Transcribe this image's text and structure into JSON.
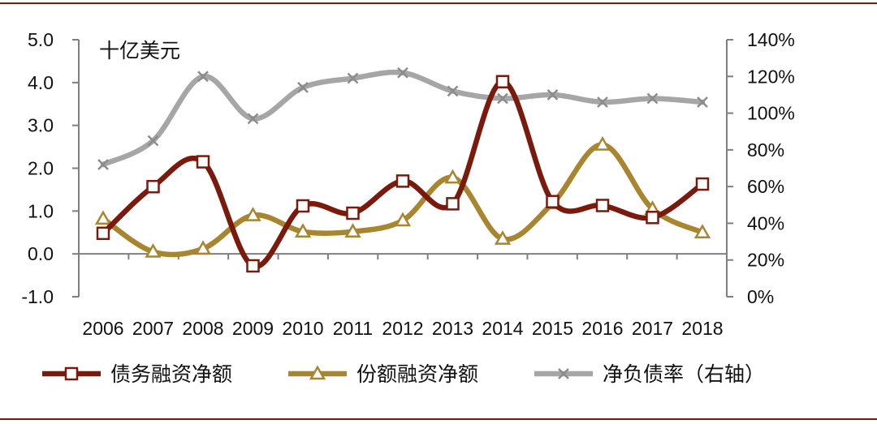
{
  "chart_data": {
    "type": "line",
    "unit_label": "十亿美元",
    "categories": [
      "2006",
      "2007",
      "2008",
      "2009",
      "2010",
      "2011",
      "2012",
      "2013",
      "2014",
      "2015",
      "2016",
      "2017",
      "2018"
    ],
    "left_axis": {
      "min": -1.0,
      "max": 5.0,
      "ticks": [
        "5.0",
        "4.0",
        "3.0",
        "2.0",
        "1.0",
        "0.0",
        "-1.0"
      ]
    },
    "right_axis": {
      "min": 0,
      "max": 140,
      "ticks": [
        "140%",
        "120%",
        "100%",
        "80%",
        "60%",
        "40%",
        "20%",
        "0%"
      ]
    },
    "series": [
      {
        "name": "债务融资净额",
        "axis": "left",
        "marker": "square",
        "color": "#7a1a0c",
        "values": [
          0.48,
          1.57,
          2.15,
          -0.28,
          1.12,
          0.95,
          1.7,
          1.17,
          4.02,
          1.22,
          1.13,
          0.85,
          1.63
        ]
      },
      {
        "name": "份额融资净额",
        "axis": "left",
        "marker": "triangle",
        "color": "#a8852f",
        "values": [
          0.82,
          0.05,
          0.12,
          0.9,
          0.52,
          0.52,
          0.78,
          1.78,
          0.35,
          1.18,
          2.55,
          1.05,
          0.5
        ]
      },
      {
        "name": "净负债率（右轴）",
        "axis": "right",
        "marker": "x",
        "color": "#a6a6a6",
        "values": [
          72,
          85,
          120,
          97,
          114,
          119,
          122,
          112,
          108,
          110,
          106,
          108,
          106
        ]
      }
    ],
    "legend_position": "bottom",
    "grid": false
  }
}
